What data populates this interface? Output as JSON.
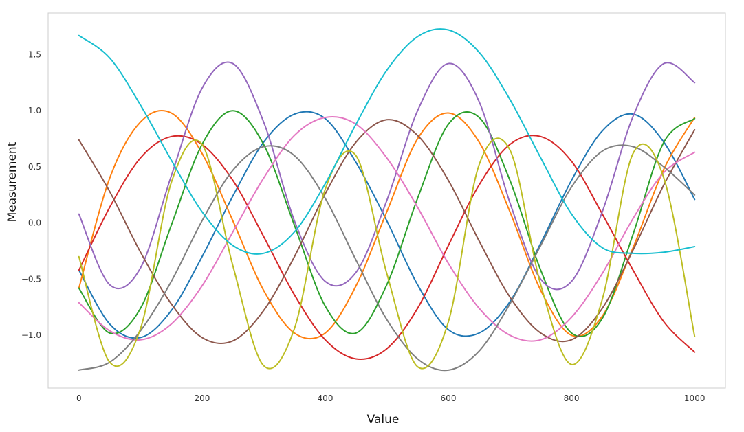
{
  "chart_data": {
    "type": "line",
    "title": "",
    "xlabel": "Value",
    "ylabel": "Measurement",
    "xlim": [
      -50,
      1050
    ],
    "ylim": [
      -1.47,
      1.87
    ],
    "grid": false,
    "legend": "none",
    "x_ticks": [
      0,
      200,
      400,
      600,
      800,
      1000
    ],
    "x_tick_labels": [
      "0",
      "200",
      "400",
      "600",
      "800",
      "1000"
    ],
    "y_ticks": [
      -1.0,
      -0.5,
      0.0,
      0.5,
      1.0,
      1.5
    ],
    "y_tick_labels": [
      "−1.0",
      "−0.5",
      "0.0",
      "0.5",
      "1.0",
      "1.5"
    ],
    "series": [
      {
        "color": "#1f77b4",
        "x": [
          0,
          50,
          100,
          150,
          200,
          250,
          300,
          350,
          400,
          450,
          500,
          550,
          600,
          650,
          700,
          750,
          800,
          850,
          900,
          950,
          1000
        ],
        "values": [
          -0.42,
          -0.9,
          -1.02,
          -0.78,
          -0.3,
          0.24,
          0.72,
          0.97,
          0.93,
          0.54,
          0.02,
          -0.55,
          -0.95,
          -0.98,
          -0.7,
          -0.18,
          0.38,
          0.82,
          0.97,
          0.72,
          0.21
        ]
      },
      {
        "color": "#ff7f0e",
        "x": [
          0,
          50,
          100,
          150,
          200,
          250,
          300,
          350,
          400,
          450,
          500,
          550,
          600,
          650,
          700,
          750,
          800,
          850,
          900,
          950,
          1000
        ],
        "values": [
          -0.58,
          0.4,
          0.9,
          0.98,
          0.62,
          0.02,
          -0.6,
          -0.98,
          -0.98,
          -0.56,
          0.1,
          0.75,
          0.98,
          0.72,
          0.1,
          -0.6,
          -1.0,
          -0.83,
          -0.22,
          0.48,
          0.94
        ]
      },
      {
        "color": "#2ca02c",
        "x": [
          0,
          50,
          100,
          150,
          200,
          250,
          300,
          350,
          400,
          450,
          500,
          550,
          600,
          650,
          700,
          750,
          800,
          850,
          900,
          950,
          1000
        ],
        "values": [
          -0.58,
          -0.98,
          -0.76,
          -0.02,
          0.7,
          1.0,
          0.7,
          -0.02,
          -0.74,
          -0.98,
          -0.55,
          0.22,
          0.88,
          0.94,
          0.38,
          -0.42,
          -0.98,
          -0.85,
          -0.1,
          0.72,
          0.93
        ]
      },
      {
        "color": "#d62728",
        "x": [
          0,
          50,
          100,
          150,
          200,
          250,
          300,
          350,
          400,
          450,
          500,
          550,
          600,
          650,
          700,
          750,
          800,
          850,
          900,
          950,
          1000
        ],
        "values": [
          -0.42,
          0.14,
          0.58,
          0.77,
          0.7,
          0.38,
          -0.12,
          -0.64,
          -1.04,
          -1.21,
          -1.12,
          -0.76,
          -0.2,
          0.34,
          0.7,
          0.77,
          0.55,
          0.08,
          -0.42,
          -0.88,
          -1.15
        ]
      },
      {
        "color": "#9467bd",
        "x": [
          0,
          50,
          100,
          150,
          200,
          250,
          300,
          350,
          400,
          450,
          500,
          550,
          600,
          650,
          700,
          750,
          800,
          850,
          900,
          950,
          1000
        ],
        "values": [
          0.08,
          -0.55,
          -0.4,
          0.42,
          1.2,
          1.42,
          0.9,
          0.02,
          -0.52,
          -0.44,
          0.2,
          1.0,
          1.42,
          1.08,
          0.18,
          -0.5,
          -0.52,
          0.1,
          0.95,
          1.42,
          1.25
        ]
      },
      {
        "color": "#8c564b",
        "x": [
          0,
          50,
          100,
          150,
          200,
          250,
          300,
          350,
          400,
          450,
          500,
          550,
          600,
          650,
          700,
          750,
          800,
          850,
          900,
          950,
          1000
        ],
        "values": [
          0.74,
          0.28,
          -0.26,
          -0.72,
          -1.02,
          -1.05,
          -0.78,
          -0.3,
          0.26,
          0.72,
          0.92,
          0.78,
          0.38,
          -0.16,
          -0.66,
          -0.98,
          -1.04,
          -0.76,
          -0.24,
          0.34,
          0.83
        ]
      },
      {
        "color": "#e377c2",
        "x": [
          0,
          50,
          100,
          150,
          200,
          250,
          300,
          350,
          400,
          450,
          500,
          550,
          600,
          650,
          700,
          750,
          800,
          850,
          900,
          950,
          1000
        ],
        "values": [
          -0.71,
          -0.96,
          -1.04,
          -0.9,
          -0.56,
          -0.08,
          0.4,
          0.78,
          0.94,
          0.88,
          0.58,
          0.14,
          -0.36,
          -0.76,
          -1.0,
          -1.04,
          -0.84,
          -0.45,
          0.04,
          0.45,
          0.63
        ]
      },
      {
        "color": "#7f7f7f",
        "x": [
          0,
          50,
          100,
          150,
          200,
          250,
          300,
          350,
          400,
          450,
          500,
          550,
          600,
          650,
          700,
          750,
          800,
          850,
          900,
          950,
          1000
        ],
        "values": [
          -1.31,
          -1.24,
          -0.96,
          -0.52,
          0.02,
          0.47,
          0.68,
          0.6,
          0.22,
          -0.33,
          -0.86,
          -1.21,
          -1.31,
          -1.14,
          -0.72,
          -0.2,
          0.32,
          0.64,
          0.68,
          0.5,
          0.25
        ]
      },
      {
        "color": "#bcbd22",
        "x": [
          0,
          50,
          100,
          150,
          200,
          250,
          300,
          350,
          400,
          450,
          500,
          550,
          600,
          650,
          700,
          750,
          800,
          850,
          900,
          950,
          1000
        ],
        "values": [
          -0.3,
          -1.24,
          -0.94,
          0.36,
          0.7,
          -0.38,
          -1.27,
          -0.94,
          0.3,
          0.6,
          -0.45,
          -1.28,
          -0.88,
          0.52,
          0.65,
          -0.55,
          -1.26,
          -0.68,
          0.62,
          0.4,
          -1.01
        ]
      },
      {
        "color": "#17becf",
        "x": [
          0,
          50,
          100,
          150,
          200,
          250,
          300,
          350,
          400,
          450,
          500,
          550,
          600,
          650,
          700,
          750,
          800,
          850,
          900,
          950,
          1000
        ],
        "values": [
          1.67,
          1.47,
          1.05,
          0.56,
          0.1,
          -0.2,
          -0.27,
          -0.08,
          0.35,
          0.88,
          1.36,
          1.66,
          1.72,
          1.52,
          1.1,
          0.58,
          0.08,
          -0.22,
          -0.27,
          -0.26,
          -0.21
        ]
      }
    ]
  }
}
